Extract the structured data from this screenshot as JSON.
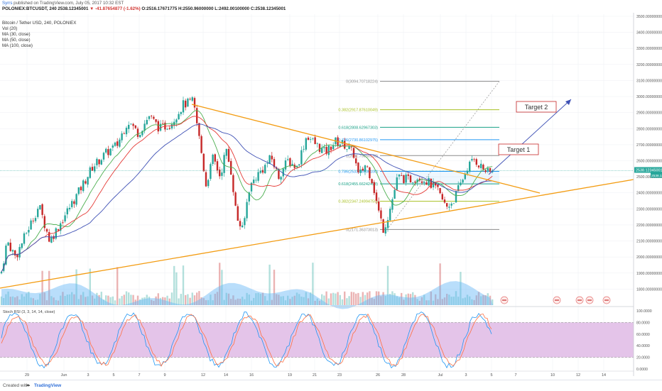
{
  "header": {
    "published_user": "Syrrs",
    "published_text": "published on TradingView.com, July 05, 2017 10:32 EST",
    "symbol": "POLONIEX:BTCUSDT, 240",
    "price": "2538.12345001",
    "change": "▼ -41.87654877 (-1.62%)",
    "ohlc": "O:2516.17671775 H:2550.96000000 L:2492.00100000 C:2538.12345001",
    "title": "Bitcoin / Tether USD, 240, POLONIEX",
    "indicators": [
      "Vol (20)",
      "MA (30, close)",
      "MA (50, close)",
      "MA (100, close)"
    ]
  },
  "footer": {
    "created": "Created with",
    "brand": "TradingView"
  },
  "chart_data": {
    "type": "candlestick",
    "title": "Bitcoin / Tether USD, 240, POLONIEX",
    "price_axis": {
      "ylim": [
        1700,
        3500
      ],
      "ticks": [
        "3500.00000000",
        "3400.00000000",
        "3300.00000000",
        "3200.00000000",
        "3100.00000000",
        "3000.00000000",
        "2900.00000000",
        "2800.00000000",
        "2700.00000000",
        "2600.00000000",
        "2500.00000000",
        "2400.00000000",
        "2300.00000000",
        "2200.00000000",
        "2100.00000000",
        "2000.00000000",
        "1900.00000000",
        "1800.00000000"
      ],
      "current_price_label": "2538.12345001",
      "current_price_label2": "2538.12",
      "last_price": 2538.12
    },
    "x_axis": {
      "ticks": [
        "29",
        "Jun",
        "3",
        "5",
        "7",
        "9",
        "12",
        "14",
        "16",
        "19",
        "21",
        "23",
        "26",
        "28",
        "Jul",
        "3",
        "5",
        "7",
        "10",
        "12",
        "14"
      ]
    },
    "price_path": [
      [
        0,
        1860
      ],
      [
        10,
        2100
      ],
      [
        22,
        2000
      ],
      [
        38,
        2160
      ],
      [
        55,
        2320
      ],
      [
        70,
        2100
      ],
      [
        90,
        2250
      ],
      [
        110,
        2400
      ],
      [
        130,
        2560
      ],
      [
        150,
        2650
      ],
      [
        165,
        2700
      ],
      [
        180,
        2850
      ],
      [
        195,
        2770
      ],
      [
        210,
        2880
      ],
      [
        225,
        2800
      ],
      [
        240,
        2830
      ],
      [
        258,
        2950
      ],
      [
        272,
        2970
      ],
      [
        282,
        2700
      ],
      [
        290,
        2450
      ],
      [
        300,
        2620
      ],
      [
        310,
        2500
      ],
      [
        318,
        2670
      ],
      [
        326,
        2520
      ],
      [
        333,
        2250
      ],
      [
        342,
        2160
      ],
      [
        350,
        2420
      ],
      [
        360,
        2500
      ],
      [
        372,
        2560
      ],
      [
        382,
        2620
      ],
      [
        392,
        2500
      ],
      [
        405,
        2600
      ],
      [
        418,
        2560
      ],
      [
        432,
        2760
      ],
      [
        445,
        2700
      ],
      [
        458,
        2650
      ],
      [
        472,
        2720
      ],
      [
        485,
        2700
      ],
      [
        498,
        2640
      ],
      [
        505,
        2500
      ],
      [
        515,
        2580
      ],
      [
        524,
        2480
      ],
      [
        532,
        2300
      ],
      [
        540,
        2170
      ],
      [
        548,
        2280
      ],
      [
        560,
        2500
      ],
      [
        575,
        2480
      ],
      [
        590,
        2500
      ],
      [
        602,
        2470
      ],
      [
        615,
        2420
      ],
      [
        628,
        2310
      ],
      [
        638,
        2350
      ],
      [
        648,
        2450
      ],
      [
        658,
        2560
      ],
      [
        668,
        2610
      ],
      [
        678,
        2560
      ],
      [
        688,
        2520
      ],
      [
        694,
        2538
      ]
    ],
    "fibonacci": [
      {
        "label": "0(3094.70718224)",
        "value": 3094.71,
        "color": "#8c8c8c"
      },
      {
        "label": "0.382(2917.87610049)",
        "value": 2917.88,
        "color": "#a8c023"
      },
      {
        "label": "0.618(2808.62967303)",
        "value": 2808.63,
        "color": "#16a085"
      },
      {
        "label": "0.786(2730.86102975)",
        "value": 2730.86,
        "color": "#2196f3"
      },
      {
        "label": "1(2631.79850128)",
        "value": 2631.8,
        "color": "#8c8c8c"
      },
      {
        "label": "0.786(2533.38536100)",
        "value": 2533.39,
        "color": "#2196f3"
      },
      {
        "label": "0.618(2455.66242498)",
        "value": 2455.66,
        "color": "#16a085"
      },
      {
        "label": "0.382(2347.24994759)",
        "value": 2347.25,
        "color": "#a8c023"
      },
      {
        "label": "0(2171.36373013)",
        "value": 2171.36,
        "color": "#8c8c8c"
      }
    ],
    "annotations": [
      "Target 1",
      "Target 2"
    ],
    "moving_averages": [
      {
        "name": "MA (30, close)",
        "color": "#4caf50"
      },
      {
        "name": "MA (50, close)",
        "color": "#e53935"
      },
      {
        "name": "MA (100, close)",
        "color": "#3f51b5"
      }
    ],
    "stoch_rsi": {
      "title": "Stoch RSI (3, 3, 14, 14, close)",
      "ylim": [
        0,
        100
      ],
      "ticks": [
        "100.0000",
        "80.0000",
        "60.0000",
        "40.0000",
        "20.0000",
        "0.0000"
      ],
      "band": [
        20,
        80
      ]
    },
    "colors": {
      "up": "#26a69a",
      "down": "#c62828",
      "trend": "#f39c12",
      "arrow": "#3f51b5",
      "band": "#e1bee7"
    }
  }
}
